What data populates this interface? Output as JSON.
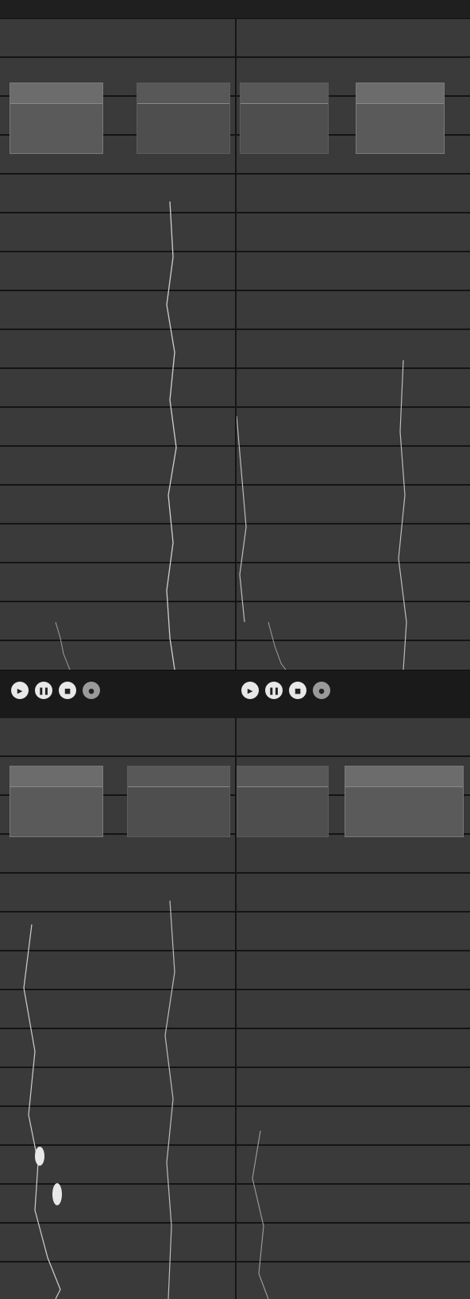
{
  "window": {
    "title": ""
  },
  "panes": [
    {
      "id": "top-left",
      "title": "",
      "cards": [
        {
          "header": "",
          "value": ""
        }
      ]
    },
    {
      "id": "top-right",
      "title": "",
      "cards": [
        {
          "header": "",
          "value": ""
        }
      ]
    },
    {
      "id": "bottom-left",
      "title": "",
      "cards": [
        {
          "header": "",
          "value": ""
        }
      ]
    },
    {
      "id": "bottom-right",
      "title": "",
      "cards": [
        {
          "header": "",
          "value": ""
        }
      ]
    }
  ],
  "controlbar": {
    "left": {
      "status": "",
      "value": "",
      "sub": ""
    },
    "right": {
      "status": "",
      "value": "",
      "sub": ""
    }
  },
  "colors": {
    "background": "#2a2a2a",
    "pane": "#3a3a3a",
    "gridline": "#141414",
    "card": "#5a5a5a",
    "trace": "#cfcfcf",
    "controlbar": "#1a1a1a"
  },
  "icons": {
    "control_buttons": [
      "play-icon",
      "pause-icon",
      "stop-icon",
      "record-icon"
    ]
  }
}
